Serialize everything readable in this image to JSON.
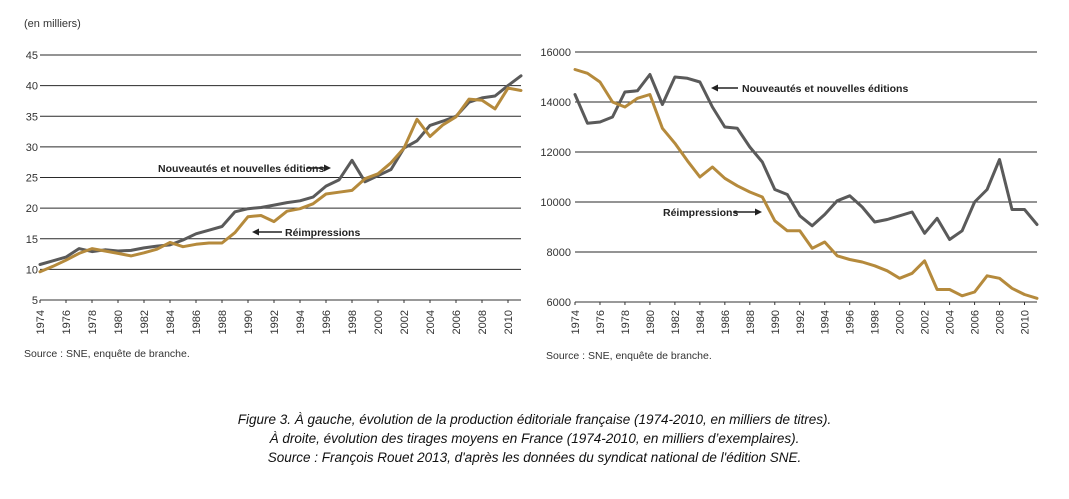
{
  "charts": {
    "left": {
      "unit_label": "(en milliers)",
      "annotation_new": "Nouveautés et nouvelles éditions",
      "annotation_reprint": "Réimpressions",
      "source": "Source : SNE, enquête de branche."
    },
    "right": {
      "annotation_new": "Nouveautés et nouvelles éditions",
      "annotation_reprint": "Réimpressions",
      "source": "Source : SNE, enquête de branche."
    }
  },
  "caption": {
    "line1": "Figure 3. À gauche, évolution de la production éditoriale française (1974-2010, en milliers de titres).",
    "line2": "À droite, évolution des tirages moyens en France (1974-2010, en milliers d’exemplaires).",
    "line3": "Source : François Rouet 2013, d'après les données du syndicat national de l'édition SNE."
  },
  "colors": {
    "new_editions": "#5a5a5a",
    "reprints": "#b58a3c",
    "grid": "#2a2a2a"
  },
  "chart_data": [
    {
      "type": "line",
      "ylabel": "(en milliers)",
      "ylim": [
        5,
        45
      ],
      "yticks": [
        5,
        10,
        15,
        20,
        25,
        30,
        35,
        40,
        45
      ],
      "xticks": [
        "1974",
        "1976",
        "1978",
        "1980",
        "1982",
        "1984",
        "1986",
        "1988",
        "1990",
        "1992",
        "1994",
        "1996",
        "1998",
        "2000",
        "2002",
        "2004",
        "2006",
        "2008",
        "2010"
      ],
      "x": [
        1974,
        1975,
        1976,
        1977,
        1978,
        1979,
        1980,
        1981,
        1982,
        1983,
        1984,
        1985,
        1986,
        1987,
        1988,
        1989,
        1990,
        1991,
        1992,
        1993,
        1994,
        1995,
        1996,
        1997,
        1998,
        1999,
        2000,
        2001,
        2002,
        2003,
        2004,
        2005,
        2006,
        2007,
        2008,
        2009,
        2010,
        2011
      ],
      "series": [
        {
          "name": "Nouveautés et nouvelles éditions",
          "values": [
            10.8,
            11.4,
            12.0,
            13.4,
            12.9,
            13.2,
            13.0,
            13.1,
            13.5,
            13.8,
            14.0,
            14.8,
            15.8,
            16.4,
            17.0,
            19.4,
            19.9,
            20.1,
            20.5,
            20.9,
            21.2,
            21.8,
            23.6,
            24.6,
            27.8,
            24.3,
            25.3,
            26.3,
            29.8,
            31.0,
            33.5,
            34.2,
            35.0,
            37.3,
            38.0,
            38.3,
            40.0,
            41.6
          ]
        },
        {
          "name": "Réimpressions",
          "values": [
            9.6,
            10.5,
            11.5,
            12.6,
            13.4,
            13.0,
            12.6,
            12.2,
            12.7,
            13.3,
            14.4,
            13.7,
            14.1,
            14.3,
            14.3,
            16.0,
            18.6,
            18.8,
            17.8,
            19.5,
            19.9,
            20.7,
            22.3,
            22.6,
            22.9,
            24.8,
            25.6,
            27.4,
            29.8,
            34.5,
            31.7,
            33.6,
            34.9,
            37.8,
            37.6,
            36.2,
            39.6,
            39.2
          ]
        }
      ]
    },
    {
      "type": "line",
      "ylim": [
        6000,
        16000
      ],
      "yticks": [
        6000,
        8000,
        10000,
        12000,
        14000,
        16000
      ],
      "xticks": [
        "1974",
        "1976",
        "1978",
        "1980",
        "1982",
        "1984",
        "1986",
        "1988",
        "1990",
        "1992",
        "1994",
        "1996",
        "1998",
        "2000",
        "2002",
        "2004",
        "2006",
        "2008",
        "2010"
      ],
      "x": [
        1974,
        1975,
        1976,
        1977,
        1978,
        1979,
        1980,
        1981,
        1982,
        1983,
        1984,
        1985,
        1986,
        1987,
        1988,
        1989,
        1990,
        1991,
        1992,
        1993,
        1994,
        1995,
        1996,
        1997,
        1998,
        1999,
        2000,
        2001,
        2002,
        2003,
        2004,
        2005,
        2006,
        2007,
        2008,
        2009,
        2010,
        2011
      ],
      "series": [
        {
          "name": "Nouveautés et nouvelles éditions",
          "values": [
            14300,
            13150,
            13200,
            13400,
            14400,
            14450,
            15100,
            13900,
            15000,
            14950,
            14800,
            13800,
            13000,
            12950,
            12200,
            11600,
            10500,
            10300,
            9450,
            9050,
            9500,
            10050,
            10250,
            9800,
            9200,
            9300,
            9450,
            9600,
            8750,
            9350,
            8500,
            8850,
            10000,
            10500,
            11700,
            9700,
            9700,
            9100
          ]
        },
        {
          "name": "Réimpressions",
          "values": [
            15300,
            15150,
            14800,
            14000,
            13800,
            14150,
            14300,
            12950,
            12350,
            11650,
            11000,
            11400,
            10950,
            10650,
            10400,
            10200,
            9250,
            8850,
            8850,
            8150,
            8400,
            7850,
            7700,
            7600,
            7450,
            7250,
            6950,
            7150,
            7650,
            6500,
            6500,
            6250,
            6400,
            7050,
            6950,
            6550,
            6300,
            6150
          ]
        }
      ]
    }
  ]
}
